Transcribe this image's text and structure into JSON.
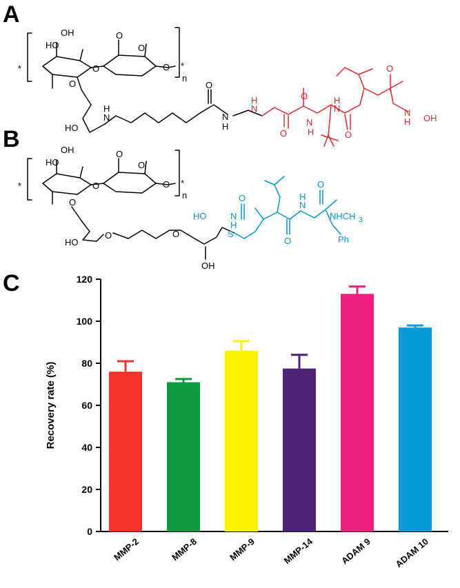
{
  "panels": {
    "a": "A",
    "b": "B",
    "c": "C"
  },
  "structure_a": {
    "black_labels": [
      "HO",
      "OH",
      "O",
      "O",
      "O",
      "O",
      "*",
      "*",
      "n",
      "O",
      "HO",
      "H",
      "N",
      "O",
      "N",
      "H"
    ],
    "red_labels": [
      "H",
      "N",
      "O",
      "N",
      "H",
      "O",
      "H",
      "N",
      "O",
      "O",
      "N",
      "H",
      "OH"
    ]
  },
  "structure_b": {
    "black_labels": [
      "HO",
      "OH",
      "O",
      "O",
      "O",
      "O",
      "*",
      "*",
      "n",
      "O",
      "HO",
      "O",
      "O",
      "OH"
    ],
    "blue_labels": [
      "O",
      "HO",
      "N",
      "H",
      "H",
      "N",
      "O",
      "O",
      "NHCH",
      "3",
      "S",
      "Ph"
    ]
  },
  "chart_data": {
    "type": "bar",
    "categories": [
      "MMP-2",
      "MMP-8",
      "MMP-9",
      "MMP-14",
      "ADAM 9",
      "ADAM 10"
    ],
    "values": [
      76,
      71,
      86,
      77.5,
      113,
      97
    ],
    "errors": [
      5,
      1.5,
      4.5,
      6.5,
      3.5,
      1
    ],
    "colors": [
      "#f5332a",
      "#0e9a3e",
      "#fff200",
      "#4b2277",
      "#f0207e",
      "#069bd8"
    ],
    "title": "",
    "xlabel": "",
    "ylabel": "Recovery rate (%)",
    "ylim": [
      0,
      120
    ],
    "yticks": [
      "0",
      "20",
      "40",
      "60",
      "80",
      "100",
      "120"
    ],
    "grid": false
  }
}
